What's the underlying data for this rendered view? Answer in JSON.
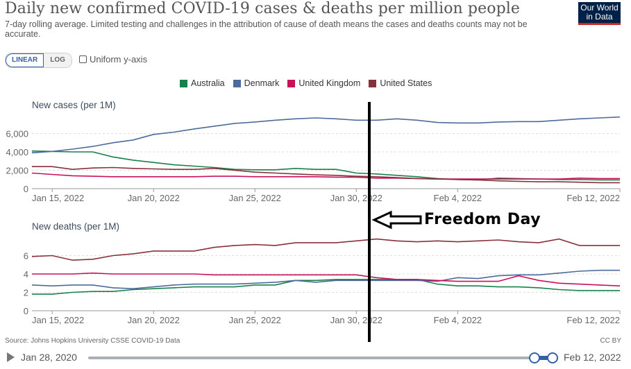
{
  "header": {
    "title": "Daily new confirmed COVID-19 cases & deaths per million people",
    "subtitle": "7-day rolling average. Limited testing and challenges in the attribution of cause of death means the cases and deaths counts may not be accurate.",
    "logo_line1": "Our World",
    "logo_line2": "in Data"
  },
  "controls": {
    "linear_label": "LINEAR",
    "log_label": "LOG",
    "uniform_label": "Uniform y-axis",
    "uniform_checked": false,
    "selected_scale": "LINEAR"
  },
  "legend": [
    {
      "name": "Australia",
      "color": "#00847e"
    },
    {
      "name": "Denmark",
      "color": "#4c6a9c"
    },
    {
      "name": "United Kingdom",
      "color": "#c8115b"
    },
    {
      "name": "United States",
      "color": "#883039"
    }
  ],
  "annotation": {
    "label": "Freedom Day",
    "date": "Jan 31, 2022"
  },
  "footer": {
    "source": "Source: Johns Hopkins University CSSE COVID-19 Data",
    "license": "CC BY",
    "timeline_start": "Jan 28, 2020",
    "timeline_end": "Feb 12, 2022"
  },
  "chart_data": [
    {
      "type": "line",
      "title": "New cases (per 1M)",
      "xlabel": "",
      "ylabel": "",
      "x_start": "Jan 14, 2022",
      "x_end": "Feb 12, 2022",
      "x_ticks": [
        "Jan 15, 2022",
        "Jan 20, 2022",
        "Jan 25, 2022",
        "Jan 30, 2022",
        "Feb 4, 2022",
        "Feb 12, 2022"
      ],
      "y_ticks": [
        "0",
        "2,000",
        "4,000",
        "6,000"
      ],
      "y_tick_values": [
        0,
        2000,
        4000,
        6000
      ],
      "ylim": [
        0,
        8000
      ],
      "grid": true,
      "series": [
        {
          "name": "Australia",
          "color": "#18804a",
          "values": [
            4100,
            4050,
            4000,
            4000,
            3450,
            3100,
            2850,
            2600,
            2450,
            2300,
            2100,
            2050,
            2050,
            2200,
            2100,
            2100,
            1700,
            1600,
            1450,
            1300,
            1100,
            1000,
            950,
            1150,
            1100,
            1050,
            1000,
            1000,
            950,
            950
          ]
        },
        {
          "name": "Denmark",
          "color": "#4c6a9c",
          "values": [
            3900,
            4050,
            4300,
            4600,
            5000,
            5300,
            5900,
            6150,
            6500,
            6800,
            7100,
            7250,
            7450,
            7600,
            7700,
            7600,
            7450,
            7450,
            7600,
            7450,
            7200,
            7150,
            7150,
            7250,
            7300,
            7300,
            7450,
            7600,
            7700,
            7800
          ]
        },
        {
          "name": "United Kingdom",
          "color": "#c8115b",
          "values": [
            1700,
            1550,
            1400,
            1350,
            1300,
            1300,
            1300,
            1300,
            1300,
            1350,
            1350,
            1300,
            1300,
            1300,
            1300,
            1250,
            1250,
            1150,
            1150,
            1100,
            1050,
            1050,
            1050,
            1050,
            1050,
            1050,
            1050,
            1150,
            1100,
            1100
          ]
        },
        {
          "name": "United States",
          "color": "#883039",
          "values": [
            2400,
            2400,
            2100,
            2250,
            2300,
            2200,
            2150,
            2100,
            2100,
            2200,
            2000,
            1800,
            1700,
            1600,
            1500,
            1450,
            1350,
            1300,
            1200,
            1100,
            1050,
            1000,
            950,
            850,
            800,
            750,
            750,
            700,
            650,
            650
          ]
        }
      ]
    },
    {
      "type": "line",
      "title": "New deaths (per 1M)",
      "xlabel": "",
      "ylabel": "",
      "x_start": "Jan 14, 2022",
      "x_end": "Feb 12, 2022",
      "x_ticks": [
        "Jan 15, 2022",
        "Jan 20, 2022",
        "Jan 25, 2022",
        "Jan 30, 2022",
        "Feb 4, 2022",
        "Feb 12, 2022"
      ],
      "y_ticks": [
        "0",
        "2",
        "4",
        "6"
      ],
      "y_tick_values": [
        0,
        2,
        4,
        6
      ],
      "ylim": [
        0,
        8
      ],
      "grid": true,
      "series": [
        {
          "name": "Australia",
          "color": "#18804a",
          "values": [
            1.8,
            1.8,
            2.0,
            2.1,
            2.1,
            2.3,
            2.4,
            2.5,
            2.6,
            2.6,
            2.6,
            2.8,
            2.8,
            3.3,
            3.3,
            3.4,
            3.4,
            3.4,
            3.4,
            3.4,
            2.9,
            2.7,
            2.7,
            2.6,
            2.6,
            2.5,
            2.3,
            2.2,
            2.2,
            2.2
          ]
        },
        {
          "name": "Denmark",
          "color": "#4c6a9c",
          "values": [
            2.8,
            2.7,
            2.8,
            2.8,
            2.5,
            2.4,
            2.6,
            2.8,
            2.9,
            2.9,
            2.9,
            3.0,
            3.1,
            3.3,
            3.1,
            3.3,
            3.3,
            3.3,
            3.3,
            3.3,
            3.2,
            3.6,
            3.5,
            3.8,
            3.9,
            3.9,
            4.1,
            4.3,
            4.4,
            4.4
          ]
        },
        {
          "name": "United Kingdom",
          "color": "#c8115b",
          "values": [
            4.0,
            4.0,
            4.0,
            4.1,
            4.0,
            4.0,
            4.0,
            4.0,
            4.0,
            3.9,
            3.9,
            3.9,
            3.9,
            3.9,
            3.9,
            3.9,
            3.9,
            3.6,
            3.4,
            3.4,
            3.3,
            3.2,
            3.2,
            3.2,
            3.8,
            3.3,
            3.0,
            2.9,
            2.8,
            2.7
          ]
        },
        {
          "name": "United States",
          "color": "#883039",
          "values": [
            5.9,
            6.0,
            5.5,
            5.6,
            6.0,
            6.2,
            6.5,
            6.5,
            6.5,
            6.9,
            7.1,
            7.2,
            7.1,
            7.4,
            7.4,
            7.4,
            7.6,
            7.8,
            7.6,
            7.5,
            7.6,
            7.5,
            7.6,
            7.7,
            7.5,
            7.4,
            7.8,
            7.1,
            7.1,
            7.1
          ]
        }
      ]
    }
  ]
}
